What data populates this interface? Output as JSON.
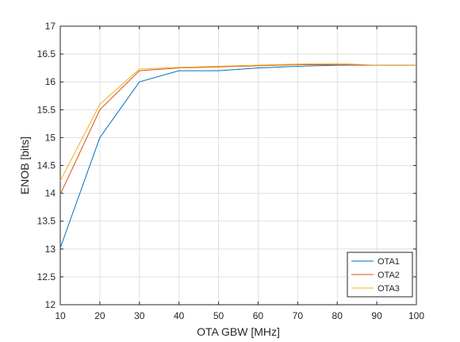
{
  "chart_data": {
    "type": "line",
    "xlabel": "OTA GBW [MHz]",
    "ylabel": "ENOB [bits]",
    "xlim": [
      10,
      100
    ],
    "ylim": [
      12,
      17
    ],
    "xticks": [
      10,
      20,
      30,
      40,
      50,
      60,
      70,
      80,
      90,
      100
    ],
    "yticks": [
      12,
      12.5,
      13,
      13.5,
      14,
      14.5,
      15,
      15.5,
      16,
      16.5,
      17
    ],
    "xtick_labels": [
      "10",
      "20",
      "30",
      "40",
      "50",
      "60",
      "70",
      "80",
      "90",
      "100"
    ],
    "ytick_labels": [
      "12",
      "12.5",
      "13",
      "13.5",
      "14",
      "14.5",
      "15",
      "15.5",
      "16",
      "16.5",
      "17"
    ],
    "grid": true,
    "legend_position": "bottom-right",
    "x": [
      10,
      20,
      30,
      40,
      50,
      60,
      70,
      80,
      90,
      100
    ],
    "series": [
      {
        "name": "OTA1",
        "color": "#0072BD",
        "values": [
          13.02,
          15.0,
          16.0,
          16.2,
          16.2,
          16.25,
          16.28,
          16.3,
          16.3,
          16.3
        ]
      },
      {
        "name": "OTA2",
        "color": "#D95319",
        "values": [
          13.98,
          15.5,
          16.2,
          16.25,
          16.27,
          16.29,
          16.31,
          16.31,
          16.3,
          16.3
        ]
      },
      {
        "name": "OTA3",
        "color": "#EDB120",
        "values": [
          14.22,
          15.6,
          16.23,
          16.26,
          16.28,
          16.3,
          16.32,
          16.33,
          16.3,
          16.3
        ]
      }
    ]
  }
}
